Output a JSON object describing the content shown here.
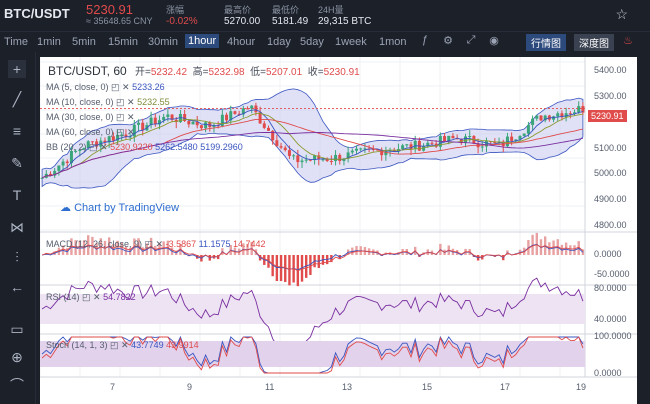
{
  "header": {
    "pair": "BTC/USDT",
    "price": "5230.91",
    "cny": "≈ 35648.65 CNY",
    "change_label": "涨幅",
    "change_value": "-0.02%",
    "high_label": "最高价",
    "high_value": "5270.00",
    "low_label": "最低价",
    "low_value": "5181.49",
    "volume_label": "24H量",
    "volume_value": "29,315 BTC",
    "star_icon": "star-icon"
  },
  "timeframes": [
    "Time",
    "1min",
    "5min",
    "15min",
    "30min",
    "1hour",
    "4hour",
    "1day",
    "5day",
    "1week",
    "1mon"
  ],
  "active_timeframe": "1hour",
  "view_buttons": {
    "market": "行情图",
    "depth": "深度图"
  },
  "legend": {
    "title": "BTC/USDT, 60",
    "open_label": "开=",
    "open": "5232.42",
    "high_label": "高=",
    "high": "5232.98",
    "low_label": "低=",
    "low": "5207.01",
    "close_label": "收=",
    "close": "5230.91",
    "ma5_label": "MA (5, close, 0)",
    "ma5": "5233.26",
    "ma10_label": "MA (10, close, 0)",
    "ma10": "5232.55",
    "ma30_label": "MA (30, close, 0)",
    "ma60_label": "MA (60, close, 0)",
    "bb_label": "BB (20, 2)",
    "bb1": "5230.9220",
    "bb2": "5262.5480",
    "bb3": "5199.2960"
  },
  "brand": "Chart by TradingView",
  "macd": {
    "label": "MACD (12, 26, close, 9)",
    "v1": "-3.5867",
    "v2": "11.1575",
    "v3": "14.7442"
  },
  "rsi": {
    "label": "RSI (14)",
    "v": "54.7822"
  },
  "stoch": {
    "label": "Stoch (14, 1, 3)",
    "v1": "43.7749",
    "v2": "43.9914"
  },
  "price_axis": [
    "5400.00",
    "5300.00",
    "5230.91",
    "5100.00",
    "5000.00",
    "4900.00",
    "4800.00"
  ],
  "macd_axis": [
    "0.0000",
    "-50.0000"
  ],
  "rsi_axis": [
    "80.0000",
    "40.0000"
  ],
  "stoch_axis": [
    "100.0000",
    "0.0000"
  ],
  "date_axis": [
    "7",
    "9",
    "11",
    "13",
    "15",
    "17",
    "19"
  ],
  "colors": {
    "up": "#3aa57a",
    "down": "#e04b4b",
    "band": "#c6c9ee",
    "accent": "#2c4a7c"
  },
  "chart_data": {
    "type": "line",
    "title": "BTC/USDT, 60",
    "x": [
      "6",
      "7",
      "8",
      "9",
      "10",
      "11",
      "12",
      "13",
      "14",
      "15",
      "16",
      "17",
      "18",
      "19"
    ],
    "series": [
      {
        "name": "close",
        "values": [
          4950,
          5080,
          5130,
          5200,
          5160,
          5240,
          5020,
          5030,
          5060,
          5080,
          5110,
          5080,
          5200,
          5231
        ]
      }
    ],
    "ylim": [
      4750,
      5420
    ]
  }
}
